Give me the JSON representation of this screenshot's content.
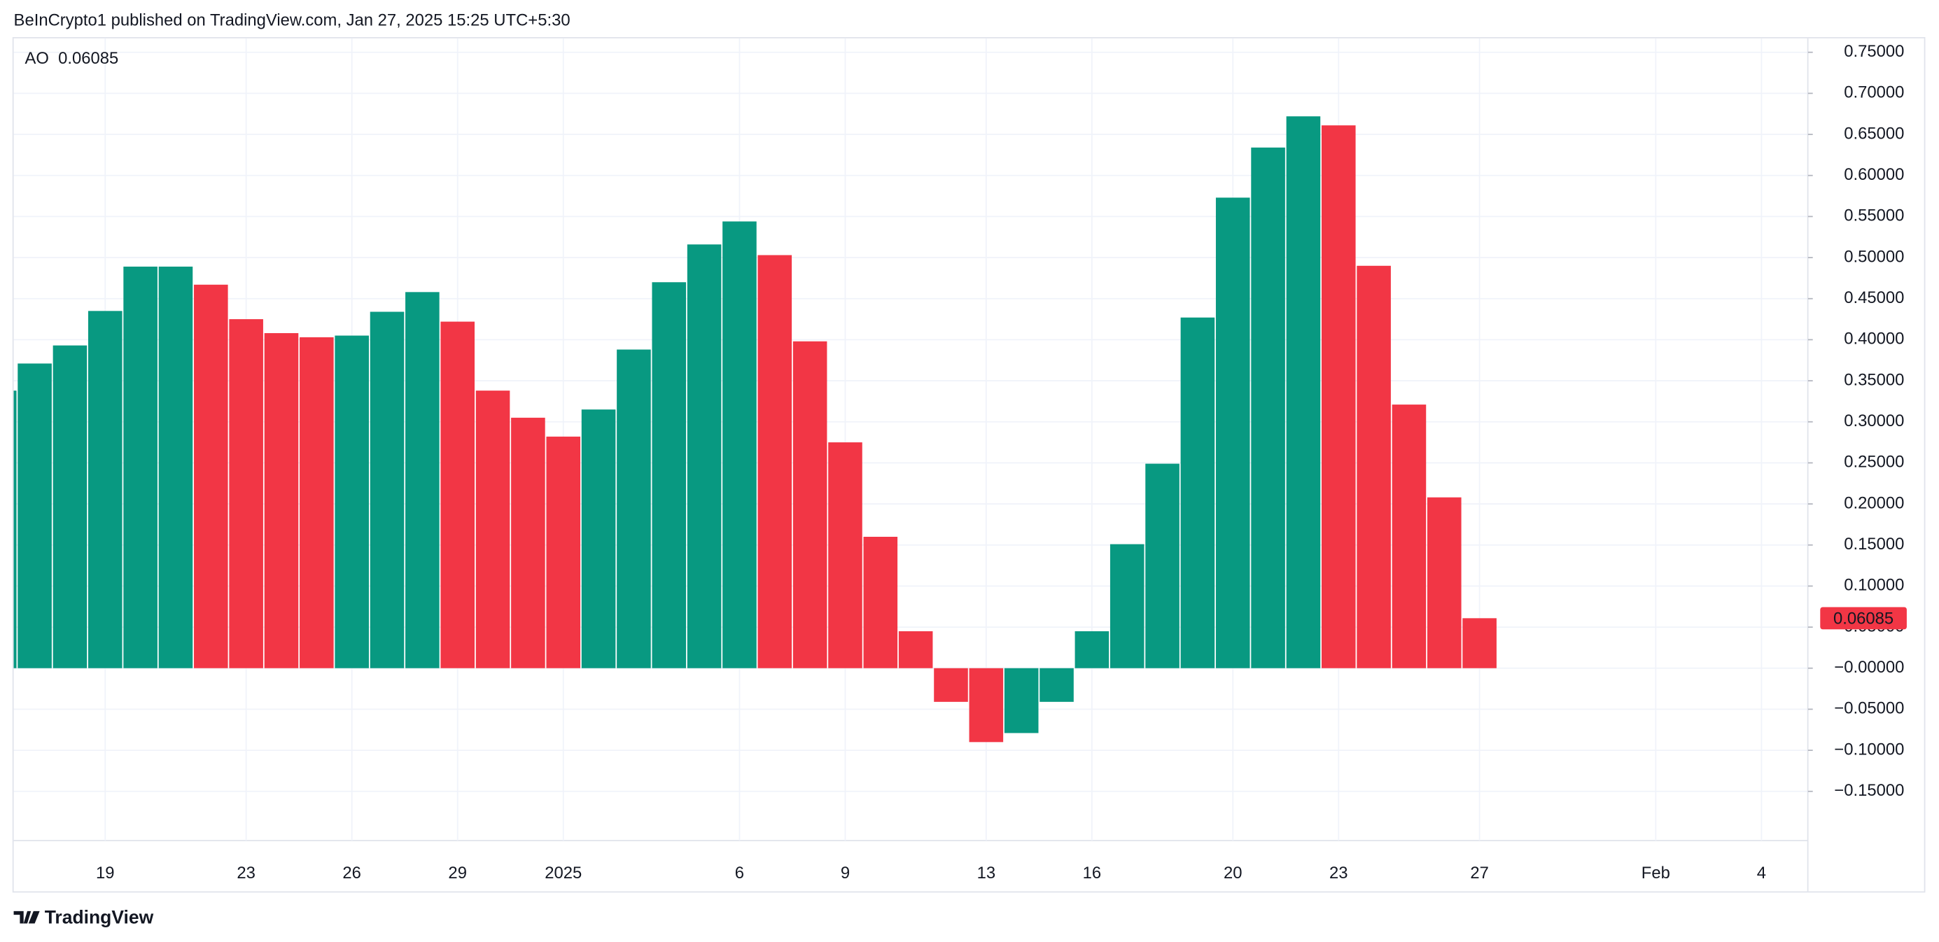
{
  "header": "BeInCrypto1 published on TradingView.com, Jan 27, 2025 15:25 UTC+5:30",
  "footer": "TradingView",
  "chart_data": {
    "type": "bar",
    "indicator": "AO",
    "up_color": "#089981",
    "down_color": "#f23645",
    "grid": true,
    "categories": [
      null,
      null,
      null,
      "19",
      null,
      null,
      null,
      "23",
      null,
      null,
      "26",
      null,
      null,
      "29",
      null,
      null,
      "2025",
      null,
      null,
      null,
      null,
      "6",
      null,
      null,
      "9",
      null,
      null,
      null,
      "13",
      null,
      null,
      "16",
      null,
      null,
      null,
      "20",
      null,
      null,
      "23",
      null,
      null,
      null,
      "27",
      null,
      null,
      null,
      null,
      "Feb",
      null,
      null,
      "4"
    ],
    "values": [
      0.338,
      0.371,
      0.393,
      0.435,
      0.489,
      0.489,
      0.467,
      0.425,
      0.408,
      0.403,
      0.405,
      0.434,
      0.458,
      0.422,
      0.338,
      0.305,
      0.282,
      0.315,
      0.388,
      0.47,
      0.516,
      0.544,
      0.503,
      0.398,
      0.275,
      0.16,
      0.045,
      -0.041,
      -0.09,
      -0.079,
      -0.041,
      0.045,
      0.151,
      0.249,
      0.427,
      0.573,
      0.634,
      0.672,
      0.661,
      0.49,
      0.321,
      0.208,
      0.06085,
      null,
      null,
      null,
      null,
      null,
      null,
      null,
      null
    ],
    "ylim": [
      -0.21,
      0.767
    ],
    "yticks": [
      {
        "value": -0.15,
        "label": "−0.15000"
      },
      {
        "value": -0.1,
        "label": "−0.10000"
      },
      {
        "value": -0.05,
        "label": "−0.05000"
      },
      {
        "value": 0,
        "label": "−0.00000"
      },
      {
        "value": 0.05,
        "label": "0.05000"
      },
      {
        "value": 0.1,
        "label": "0.10000"
      },
      {
        "value": 0.15,
        "label": "0.15000"
      },
      {
        "value": 0.2,
        "label": "0.20000"
      },
      {
        "value": 0.25,
        "label": "0.25000"
      },
      {
        "value": 0.3,
        "label": "0.30000"
      },
      {
        "value": 0.35,
        "label": "0.35000"
      },
      {
        "value": 0.4,
        "label": "0.40000"
      },
      {
        "value": 0.45,
        "label": "0.45000"
      },
      {
        "value": 0.5,
        "label": "0.50000"
      },
      {
        "value": 0.55,
        "label": "0.55000"
      },
      {
        "value": 0.6,
        "label": "0.60000"
      },
      {
        "value": 0.65,
        "label": "0.65000"
      },
      {
        "value": 0.7,
        "label": "0.70000"
      },
      {
        "value": 0.75,
        "label": "0.75000"
      }
    ]
  }
}
